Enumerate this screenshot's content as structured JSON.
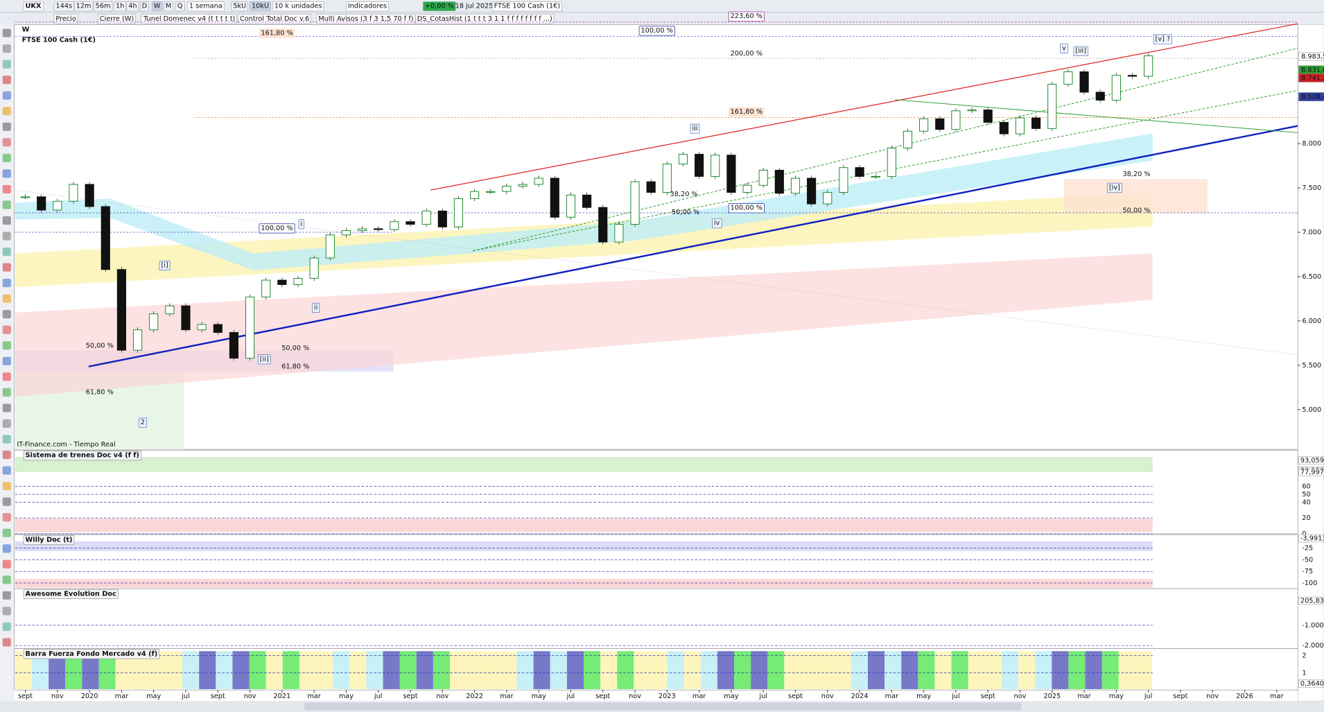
{
  "toolbar": {
    "symbol": "UKX",
    "timeframes": [
      "144s",
      "12m",
      "56m",
      "1h",
      "4h",
      "D",
      "W",
      "M",
      "Q"
    ],
    "period": "1 semana",
    "units": [
      "5kU",
      "10kU"
    ],
    "units_select": "10 k unidades",
    "indicators": "Indicadores",
    "change": "+0,00 %",
    "date": "18 jul 2025",
    "instrument": "FTSE 100 Cash (1€)"
  },
  "legend_bar": [
    "Precio",
    "Cierre (W)",
    "Tunel Domenec v4 (t t t t t)",
    "Control Total Doc v.6",
    "Multi Avisos (3 f 3 1,5 70 f f)",
    "DS_CotasHist (1 t t t 3 1 1 f f f f f f f f ...)"
  ],
  "chart_data": {
    "type": "candlestick",
    "title": "W",
    "subtitle": "FTSE 100 Cash (1€)",
    "source": "IT-Finance.com - Tiempo Real",
    "x_labels": [
      "sept",
      "nov",
      "2020",
      "mar",
      "may",
      "jul",
      "sept",
      "nov",
      "2021",
      "mar",
      "may",
      "jul",
      "sept",
      "nov",
      "2022",
      "mar",
      "may",
      "jul",
      "sept",
      "nov",
      "2023",
      "mar",
      "may",
      "jul",
      "sept",
      "nov",
      "2024",
      "mar",
      "may",
      "jul",
      "sept",
      "nov",
      "2025",
      "mar",
      "may",
      "jul",
      "sept",
      "nov",
      "2026",
      "mar"
    ],
    "values": [
      7400,
      7250,
      7350,
      7540,
      7290,
      6580,
      5670,
      5900,
      6080,
      6170,
      5900,
      5960,
      5870,
      5580,
      6270,
      6460,
      6410,
      6480,
      6710,
      6970,
      7020,
      7040,
      7030,
      7120,
      7090,
      7240,
      7060,
      7380,
      7460,
      7460,
      7520,
      7540,
      7610,
      7170,
      7420,
      7280,
      6890,
      7090,
      7570,
      7450,
      7770,
      7880,
      7630,
      7870,
      7450,
      7530,
      7700,
      7440,
      7610,
      7320,
      7450,
      7730,
      7630,
      7630,
      7950,
      8140,
      8280,
      8160,
      8370,
      8380,
      8240,
      8110,
      8290,
      8170,
      8670,
      8810,
      8580,
      8490,
      8770,
      8760,
      8990
    ],
    "ylim": [
      4552,
      9343
    ],
    "yticks": [
      {
        "value": 5000,
        "label": "5.000"
      },
      {
        "value": 5500,
        "label": "5.500"
      },
      {
        "value": 6000,
        "label": "6.000"
      },
      {
        "value": 6500,
        "label": "6.500"
      },
      {
        "value": 7000,
        "label": "7.000"
      },
      {
        "value": 7500,
        "label": "7.500"
      },
      {
        "value": 8000,
        "label": "8.000"
      }
    ],
    "price_tags": [
      {
        "value": 8983.5,
        "label": "8.983,5",
        "color": "#ffffff"
      },
      {
        "value": 8831.6,
        "label": "8.831,6",
        "color": "#2e9e2e"
      },
      {
        "value": 8741.2,
        "label": "8.741,2",
        "color": "#d02020"
      },
      {
        "value": 8528.4,
        "label": "8.528,4",
        "color": "#3040a0"
      }
    ]
  },
  "annotations": {
    "waves": [
      "[i]",
      "2",
      "[ii]",
      "i",
      "ii",
      "iii",
      "iv",
      "v",
      "[iii]",
      "[iv]",
      "[v] ?"
    ],
    "fibs": [
      "223,60 %",
      "161,80 %",
      "100,00 %",
      "200,00 %",
      "161,80 %",
      "100,00 %",
      "100,00 %",
      "38,20 %",
      "50,00 %",
      "38,20 %",
      "50,00 %",
      "50,00 %",
      "50,00 %",
      "61,80 %",
      "61,80 %"
    ]
  },
  "panels": [
    {
      "title": "Sistema de trenes Doc v4 (f f)",
      "ylim": [
        0,
        106
      ],
      "yticks": [
        0,
        20,
        40,
        50,
        60
      ],
      "tags": [
        {
          "value": 93.059,
          "label": "93,059"
        },
        {
          "value": 80.186,
          "label": "80,186"
        },
        {
          "value": 77.997,
          "label": "77,997"
        }
      ]
    },
    {
      "title": "Willy Doc (t)",
      "ylim": [
        -112,
        4
      ],
      "yticks": [
        -100,
        -75,
        -50,
        -25
      ],
      "tags": [
        {
          "value": -3.9913,
          "label": "-3,9913"
        }
      ]
    },
    {
      "title": "Awesome Evolution Doc",
      "ylim": [
        -2150,
        800
      ],
      "yticks": [
        {
          "value": -1000,
          "label": "-1.000"
        },
        {
          "value": -2000,
          "label": "-2.000"
        }
      ],
      "tags": [
        {
          "value": 205.83,
          "label": "205,83"
        }
      ]
    },
    {
      "title": "Barra Fuerza Fondo Mercado v4 (f)",
      "ylim": [
        0,
        2.4
      ],
      "yticks": [
        1,
        2
      ],
      "tags": [
        {
          "value": 0.364,
          "label": "0,3640"
        }
      ]
    }
  ]
}
